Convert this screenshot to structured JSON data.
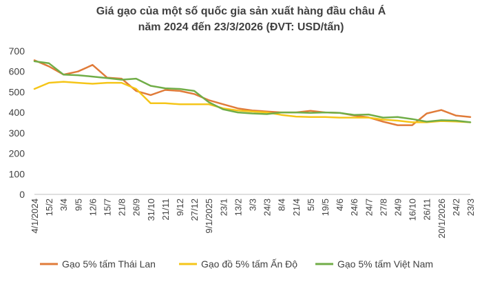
{
  "title_lines": [
    "Giá gạo của một số quốc gia sản xuất hàng đầu châu Á",
    "năm 2024 đến 23/3/2026 (ĐVT: USD/tấn)"
  ],
  "chart_data": {
    "type": "line",
    "title": "Giá gạo của một số quốc gia sản xuất hàng đầu châu Á năm 2024 đến 23/3/2026 (ĐVT: USD/tấn)",
    "ylim": [
      0,
      700
    ],
    "yticks": [
      0,
      100,
      200,
      300,
      400,
      500,
      600,
      700
    ],
    "grid": false,
    "legend_position": "bottom",
    "categories": [
      "4/1/2024",
      "15/2",
      "3/4",
      "9/5",
      "12/6",
      "15/7",
      "21/8",
      "26/9",
      "31/10",
      "21/11",
      "9/12",
      "27/12",
      "9/1/2025",
      "23/1",
      "13/2",
      "3/3",
      "24/3",
      "8/4",
      "21/4",
      "5/5",
      "19/5",
      "4/6",
      "24/6",
      "24/7",
      "27/8",
      "24/9",
      "16/10",
      "26/11",
      "20/1/2026",
      "24/2",
      "23/3"
    ],
    "series": [
      {
        "name": "Gạo 5% tấm Thái Lan",
        "color": "#E07B39",
        "values": [
          655,
          625,
          585,
          600,
          632,
          570,
          565,
          505,
          485,
          510,
          505,
          490,
          460,
          440,
          420,
          410,
          405,
          400,
          400,
          408,
          400,
          398,
          385,
          376,
          355,
          338,
          338,
          395,
          412,
          385,
          378
        ]
      },
      {
        "name": "Gạo đồ 5% tấm Ấn Độ",
        "color": "#F5C518",
        "values": [
          515,
          545,
          550,
          545,
          540,
          545,
          545,
          515,
          445,
          445,
          440,
          440,
          440,
          420,
          410,
          405,
          400,
          388,
          380,
          378,
          378,
          375,
          375,
          375,
          365,
          360,
          352,
          352,
          358,
          356,
          352
        ]
      },
      {
        "name": "Gạo 5% tấm Việt Nam",
        "color": "#70AD47",
        "values": [
          650,
          640,
          585,
          582,
          575,
          568,
          560,
          565,
          530,
          518,
          515,
          505,
          450,
          415,
          400,
          395,
          392,
          400,
          400,
          398,
          400,
          398,
          388,
          390,
          375,
          378,
          368,
          355,
          362,
          360,
          352
        ]
      }
    ]
  }
}
